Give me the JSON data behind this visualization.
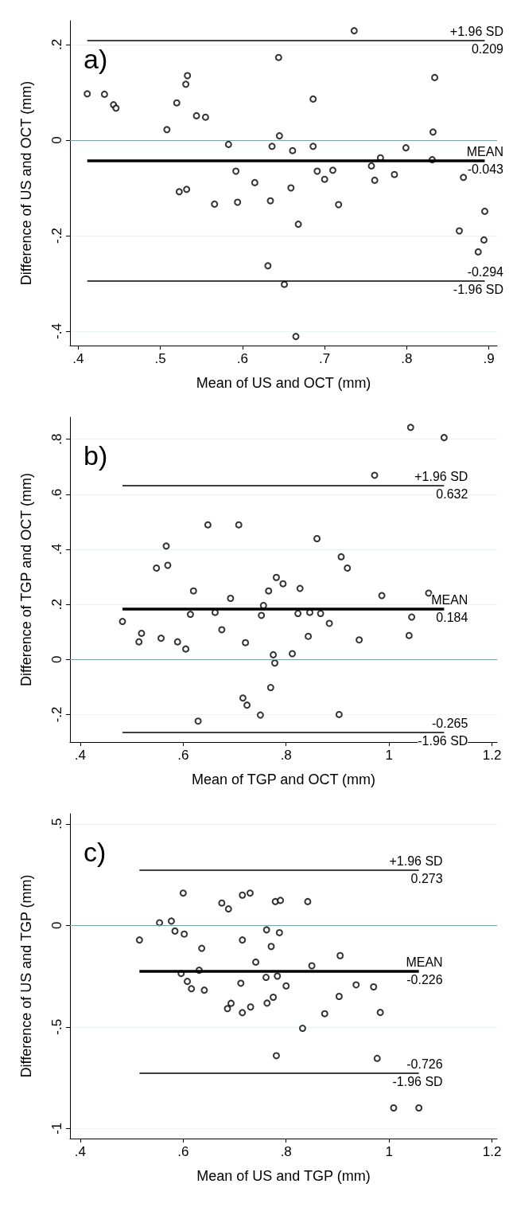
{
  "chart_data": [
    {
      "type": "scatter",
      "title": "a)",
      "xlabel": "Mean of US and OCT (mm)",
      "ylabel": "Difference of US and OCT (mm)",
      "marker": "circle",
      "grid": "y",
      "x": [
        0.411,
        0.432,
        0.443,
        0.446,
        0.533,
        0.531,
        0.52,
        0.544,
        0.555,
        0.508,
        0.644,
        0.736,
        0.686,
        0.834,
        0.832,
        0.645,
        0.583,
        0.636,
        0.661,
        0.686,
        0.799,
        0.768,
        0.831,
        0.869,
        0.757,
        0.592,
        0.691,
        0.71,
        0.7,
        0.761,
        0.785,
        0.615,
        0.659,
        0.523,
        0.532,
        0.566,
        0.594,
        0.634,
        0.717,
        0.668,
        0.895,
        0.864,
        0.894,
        0.887,
        0.631,
        0.651,
        0.665
      ],
      "series": [
        {
          "color": "#000000",
          "values": [
            0.097,
            0.096,
            0.074,
            0.067,
            0.135,
            0.117,
            0.078,
            0.051,
            0.048,
            0.022,
            0.173,
            0.229,
            0.086,
            0.131,
            0.017,
            0.009,
            -0.009,
            -0.013,
            -0.022,
            -0.013,
            -0.016,
            -0.037,
            -0.041,
            -0.078,
            -0.054,
            -0.065,
            -0.065,
            -0.063,
            -0.082,
            -0.084,
            -0.072,
            -0.089,
            -0.1,
            -0.108,
            -0.103,
            -0.134,
            -0.13,
            -0.127,
            -0.135,
            -0.176,
            -0.149,
            -0.19,
            -0.209,
            -0.234,
            -0.263,
            -0.302,
            -0.411
          ]
        }
      ],
      "xlim": [
        0.39,
        0.91
      ],
      "ylim": [
        -0.43,
        0.25
      ],
      "xticks": [
        {
          "value": 0.4,
          "label": ".4"
        },
        {
          "value": 0.5,
          "label": ".5"
        },
        {
          "value": 0.6,
          "label": ".6"
        },
        {
          "value": 0.7,
          "label": ".7"
        },
        {
          "value": 0.8,
          "label": ".8"
        },
        {
          "value": 0.9,
          "label": ".9"
        }
      ],
      "yticks": [
        {
          "value": -0.4,
          "label": "-.4"
        },
        {
          "value": -0.2,
          "label": "-.2"
        },
        {
          "value": 0,
          "label": "0"
        },
        {
          "value": 0.2,
          "label": ".2"
        }
      ],
      "ref_lines": [
        {
          "axis": "y",
          "value": 0,
          "color": "#7aa5a5"
        },
        {
          "axis": "y",
          "value": 0.209,
          "label": "+1.96 SD",
          "color": "#000000"
        },
        {
          "axis": "y",
          "value": -0.043,
          "label": "MEAN",
          "color": "#000000"
        },
        {
          "axis": "y",
          "value": -0.294,
          "label": "-1.96 SD",
          "color": "#000000"
        }
      ],
      "annotations": [
        "0.209",
        "-0.043",
        "-0.294"
      ]
    },
    {
      "type": "scatter",
      "title": "b)",
      "xlabel": "Mean of TGP and OCT (mm)",
      "ylabel": "Difference of TGP and OCT (mm)",
      "marker": "circle",
      "grid": "y",
      "x": [
        1.042,
        1.107,
        0.972,
        0.648,
        0.708,
        0.86,
        0.567,
        0.907,
        0.919,
        0.548,
        0.57,
        0.781,
        0.794,
        0.62,
        0.766,
        0.827,
        0.692,
        0.986,
        1.077,
        0.756,
        0.482,
        0.519,
        0.514,
        0.557,
        0.589,
        0.605,
        0.614,
        0.662,
        0.675,
        0.721,
        0.752,
        0.823,
        0.846,
        0.867,
        0.884,
        0.843,
        0.942,
        1.039,
        1.044,
        0.775,
        0.812,
        0.778,
        0.77,
        0.716,
        0.724,
        0.75,
        0.903,
        0.629
      ],
      "series": [
        {
          "color": "#000000",
          "values": [
            0.843,
            0.806,
            0.669,
            0.489,
            0.489,
            0.439,
            0.412,
            0.373,
            0.332,
            0.332,
            0.342,
            0.298,
            0.275,
            0.249,
            0.249,
            0.258,
            0.222,
            0.232,
            0.241,
            0.196,
            0.138,
            0.095,
            0.064,
            0.077,
            0.064,
            0.038,
            0.164,
            0.171,
            0.108,
            0.061,
            0.16,
            0.167,
            0.171,
            0.167,
            0.131,
            0.084,
            0.071,
            0.087,
            0.154,
            0.017,
            0.021,
            -0.013,
            -0.102,
            -0.14,
            -0.166,
            -0.202,
            -0.2,
            -0.224
          ]
        }
      ],
      "xlim": [
        0.38,
        1.21
      ],
      "ylim": [
        -0.3,
        0.88
      ],
      "xticks": [
        {
          "value": 0.4,
          "label": ".4"
        },
        {
          "value": 0.6,
          "label": ".6"
        },
        {
          "value": 0.8,
          "label": ".8"
        },
        {
          "value": 1,
          "label": "1"
        },
        {
          "value": 1.2,
          "label": "1.2"
        }
      ],
      "yticks": [
        {
          "value": -0.2,
          "label": "-.2"
        },
        {
          "value": 0,
          "label": "0"
        },
        {
          "value": 0.2,
          "label": ".2"
        },
        {
          "value": 0.4,
          "label": ".4"
        },
        {
          "value": 0.6,
          "label": ".6"
        },
        {
          "value": 0.8,
          "label": ".8"
        }
      ],
      "ref_lines": [
        {
          "axis": "y",
          "value": 0,
          "color": "#7aa5a5"
        },
        {
          "axis": "y",
          "value": 0.632,
          "label": "+1.96 SD",
          "color": "#000000"
        },
        {
          "axis": "y",
          "value": 0.184,
          "label": "MEAN",
          "color": "#000000"
        },
        {
          "axis": "y",
          "value": -0.265,
          "label": "-1.96 SD",
          "color": "#000000"
        }
      ],
      "annotations": [
        "0.632",
        "0.184",
        "-0.265"
      ]
    },
    {
      "type": "scatter",
      "title": "c)",
      "xlabel": "Mean of US and TGP (mm)",
      "ylabel": "Difference of US and TGP (mm)",
      "marker": "circle",
      "grid": "y",
      "x": [
        0.6,
        0.675,
        0.688,
        0.715,
        0.73,
        0.779,
        0.789,
        0.842,
        0.554,
        0.577,
        0.584,
        0.602,
        0.515,
        0.636,
        0.715,
        0.762,
        0.787,
        0.771,
        0.905,
        0.741,
        0.85,
        0.631,
        0.596,
        0.608,
        0.616,
        0.641,
        0.712,
        0.761,
        0.783,
        0.8,
        0.936,
        0.97,
        0.903,
        0.775,
        0.693,
        0.686,
        0.715,
        0.731,
        0.763,
        0.875,
        0.983,
        0.832,
        0.781,
        0.977,
        1.009,
        1.058
      ],
      "series": [
        {
          "color": "#000000",
          "values": [
            0.159,
            0.11,
            0.081,
            0.149,
            0.159,
            0.117,
            0.123,
            0.117,
            0.013,
            0.021,
            -0.028,
            -0.043,
            -0.072,
            -0.113,
            -0.072,
            -0.022,
            -0.036,
            -0.104,
            -0.149,
            -0.181,
            -0.199,
            -0.221,
            -0.237,
            -0.276,
            -0.312,
            -0.319,
            -0.285,
            -0.256,
            -0.25,
            -0.298,
            -0.293,
            -0.303,
            -0.35,
            -0.354,
            -0.384,
            -0.41,
            -0.43,
            -0.402,
            -0.383,
            -0.435,
            -0.429,
            -0.507,
            -0.642,
            -0.655,
            -0.899,
            -0.899
          ]
        }
      ],
      "xlim": [
        0.38,
        1.21
      ],
      "ylim": [
        -1.05,
        0.55
      ],
      "xticks": [
        {
          "value": 0.4,
          "label": ".4"
        },
        {
          "value": 0.6,
          "label": ".6"
        },
        {
          "value": 0.8,
          "label": ".8"
        },
        {
          "value": 1,
          "label": "1"
        },
        {
          "value": 1.2,
          "label": "1.2"
        }
      ],
      "yticks": [
        {
          "value": -1,
          "label": "-1"
        },
        {
          "value": -0.5,
          "label": "-.5"
        },
        {
          "value": 0,
          "label": "0"
        },
        {
          "value": 0.5,
          "label": ".5"
        }
      ],
      "ref_lines": [
        {
          "axis": "y",
          "value": 0,
          "color": "#7aa5a5"
        },
        {
          "axis": "y",
          "value": 0.273,
          "label": "+1.96 SD",
          "color": "#000000"
        },
        {
          "axis": "y",
          "value": -0.226,
          "label": "MEAN",
          "color": "#000000"
        },
        {
          "axis": "y",
          "value": -0.726,
          "label": "-1.96 SD",
          "color": "#000000"
        }
      ],
      "annotations": [
        "0.273",
        "-0.226",
        "-0.726"
      ]
    }
  ]
}
